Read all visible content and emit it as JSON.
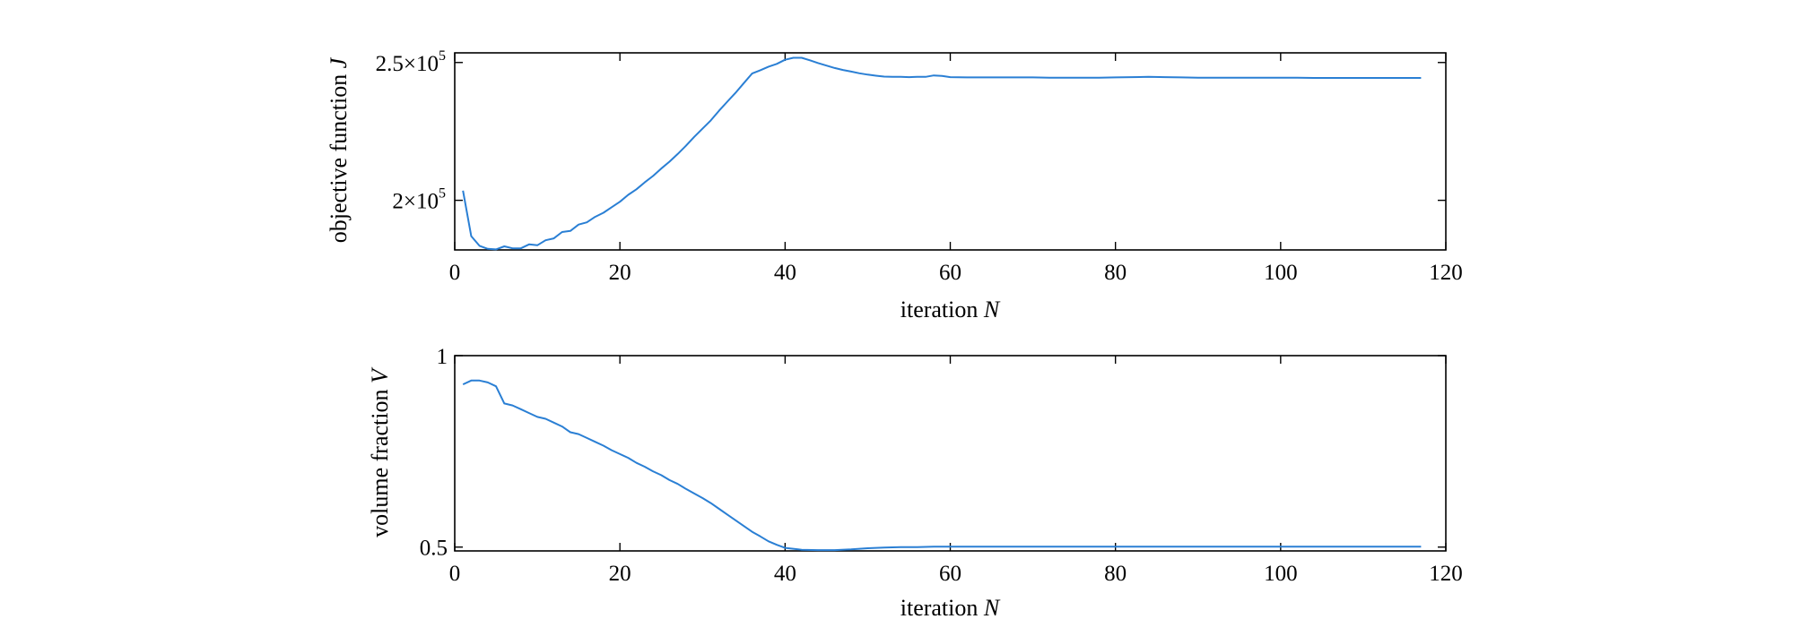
{
  "chart_data": [
    {
      "type": "line",
      "xlabel": "iteration",
      "xlabel_var": "N",
      "ylabel": "objective function",
      "ylabel_var": "J",
      "xlim": [
        0,
        120
      ],
      "ylim": [
        182000,
        253500
      ],
      "xticks": [
        0,
        20,
        40,
        60,
        80,
        100,
        120
      ],
      "xtick_labels": [
        "0",
        "20",
        "40",
        "60",
        "80",
        "100",
        "120"
      ],
      "yticks": [
        {
          "value": 200000,
          "mantissa": "2",
          "exp": "5"
        },
        {
          "value": 250000,
          "mantissa": "2.5",
          "exp": "5"
        }
      ],
      "times_sign": "×10",
      "grid": false,
      "color": "#2a7fd4",
      "x": [
        1,
        2,
        3,
        4,
        5,
        6,
        7,
        8,
        9,
        10,
        11,
        12,
        13,
        14,
        15,
        16,
        17,
        18,
        19,
        20,
        21,
        22,
        23,
        24,
        25,
        26,
        27,
        28,
        29,
        30,
        31,
        32,
        33,
        34,
        35,
        36,
        37,
        38,
        39,
        40,
        41,
        42,
        43,
        44,
        45,
        46,
        47,
        48,
        49,
        50,
        51,
        52,
        53,
        54,
        55,
        56,
        57,
        58,
        59,
        60,
        62,
        64,
        66,
        68,
        70,
        72,
        74,
        76,
        78,
        80,
        82,
        84,
        86,
        88,
        90,
        92,
        94,
        96,
        98,
        100,
        102,
        104,
        106,
        108,
        110,
        112,
        114,
        117
      ],
      "y": [
        203500,
        187000,
        183500,
        182400,
        182200,
        183300,
        182600,
        182600,
        184000,
        183700,
        185500,
        186200,
        188500,
        188900,
        191200,
        192000,
        194000,
        195500,
        197500,
        199500,
        202000,
        204000,
        206500,
        208800,
        211500,
        214000,
        216800,
        219800,
        223000,
        226000,
        229000,
        232500,
        235800,
        239000,
        242500,
        246000,
        247200,
        248500,
        249500,
        251000,
        251700,
        251700,
        250800,
        249800,
        248900,
        248000,
        247300,
        246700,
        246100,
        245600,
        245200,
        244900,
        244800,
        244800,
        244700,
        244800,
        244800,
        245300,
        245100,
        244700,
        244600,
        244600,
        244600,
        244600,
        244600,
        244500,
        244500,
        244500,
        244500,
        244600,
        244700,
        244800,
        244700,
        244600,
        244500,
        244500,
        244500,
        244500,
        244500,
        244500,
        244500,
        244400,
        244400,
        244400,
        244400,
        244400,
        244400,
        244400
      ]
    },
    {
      "type": "line",
      "xlabel": "iteration",
      "xlabel_var": "N",
      "ylabel": "volume fraction",
      "ylabel_var": "V",
      "xlim": [
        0,
        120
      ],
      "ylim": [
        0.49,
        1.0
      ],
      "xticks": [
        0,
        20,
        40,
        60,
        80,
        100,
        120
      ],
      "xtick_labels": [
        "0",
        "20",
        "40",
        "60",
        "80",
        "100",
        "120"
      ],
      "yticks": [
        {
          "value": 0.5,
          "label": "0.5"
        },
        {
          "value": 1.0,
          "label": "1"
        }
      ],
      "grid": false,
      "color": "#2a7fd4",
      "x": [
        1,
        2,
        3,
        4,
        5,
        6,
        7,
        8,
        9,
        10,
        11,
        12,
        13,
        14,
        15,
        16,
        17,
        18,
        19,
        20,
        21,
        22,
        23,
        24,
        25,
        26,
        27,
        28,
        29,
        30,
        31,
        32,
        33,
        34,
        35,
        36,
        37,
        38,
        39,
        40,
        42,
        44,
        46,
        48,
        50,
        52,
        54,
        56,
        58,
        60,
        62,
        64,
        66,
        68,
        70,
        72,
        74,
        76,
        78,
        80,
        82,
        84,
        86,
        88,
        90,
        92,
        94,
        96,
        98,
        100,
        102,
        104,
        106,
        108,
        110,
        112,
        114,
        117
      ],
      "y": [
        0.925,
        0.935,
        0.935,
        0.93,
        0.92,
        0.875,
        0.87,
        0.86,
        0.85,
        0.84,
        0.835,
        0.825,
        0.815,
        0.8,
        0.795,
        0.785,
        0.775,
        0.765,
        0.753,
        0.743,
        0.733,
        0.72,
        0.71,
        0.698,
        0.688,
        0.675,
        0.665,
        0.652,
        0.64,
        0.628,
        0.615,
        0.6,
        0.585,
        0.57,
        0.555,
        0.54,
        0.528,
        0.515,
        0.506,
        0.498,
        0.493,
        0.492,
        0.492,
        0.494,
        0.497,
        0.499,
        0.5,
        0.5,
        0.501,
        0.501,
        0.501,
        0.501,
        0.501,
        0.501,
        0.501,
        0.501,
        0.501,
        0.501,
        0.501,
        0.501,
        0.501,
        0.501,
        0.501,
        0.501,
        0.501,
        0.501,
        0.501,
        0.501,
        0.501,
        0.501,
        0.501,
        0.501,
        0.501,
        0.501,
        0.501,
        0.501,
        0.501,
        0.501
      ]
    }
  ]
}
